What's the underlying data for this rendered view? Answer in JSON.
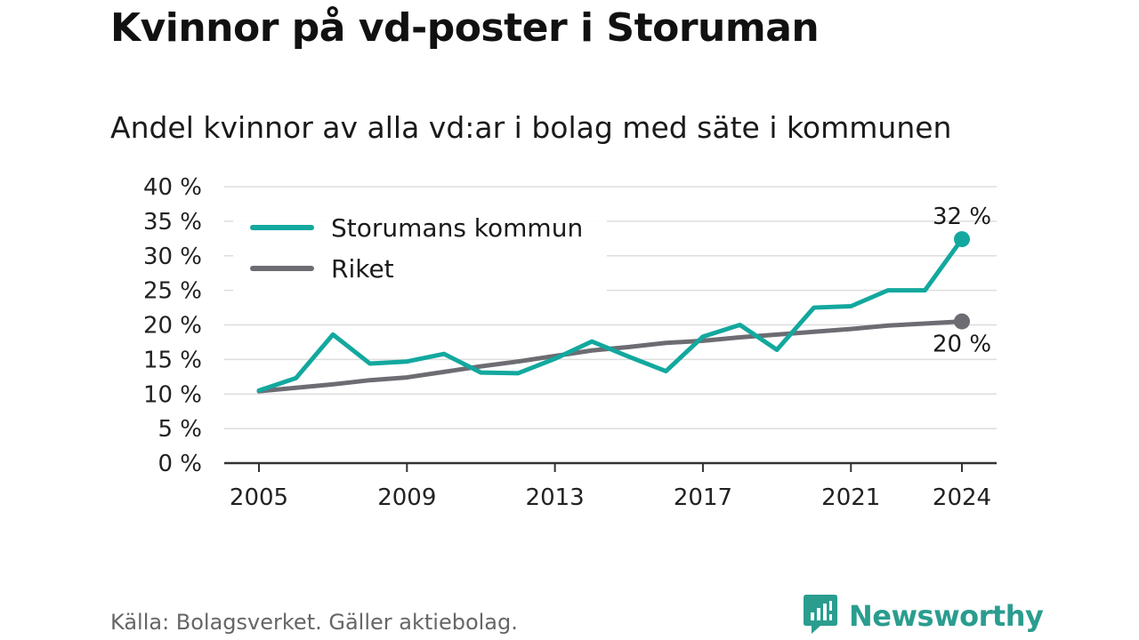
{
  "header": {
    "title": "Kvinnor på vd-poster i Storuman",
    "subtitle": "Andel kvinnor av alla vd:ar i bolag med säte i kommunen"
  },
  "footer": {
    "source": "Källa: Bolagsverket. Gäller aktiebolag.",
    "brand": "Newsworthy",
    "brand_icon": "newsworthy-logo-icon"
  },
  "colors": {
    "storuman": "#13a89e",
    "riket": "#6d6c72",
    "grid": "#dddddd",
    "axis": "#333333",
    "brand": "#2a9d8f"
  },
  "chart_data": {
    "type": "line",
    "x": [
      2005,
      2006,
      2007,
      2008,
      2009,
      2010,
      2011,
      2012,
      2013,
      2014,
      2015,
      2016,
      2017,
      2018,
      2019,
      2020,
      2021,
      2022,
      2023,
      2024
    ],
    "series": [
      {
        "name": "Storumans kommun",
        "color": "#13a89e",
        "values": [
          10.5,
          12.3,
          18.6,
          14.4,
          14.7,
          15.8,
          13.1,
          13.0,
          15.1,
          17.6,
          15.4,
          13.3,
          18.3,
          20.0,
          16.4,
          22.5,
          22.7,
          25.0,
          25.0,
          32.4
        ],
        "end_label": "32 %"
      },
      {
        "name": "Riket",
        "color": "#6d6c72",
        "values": [
          10.4,
          10.9,
          11.4,
          12.0,
          12.4,
          13.2,
          14.0,
          14.7,
          15.5,
          16.3,
          16.8,
          17.4,
          17.7,
          18.2,
          18.6,
          19.0,
          19.4,
          19.9,
          20.2,
          20.5
        ],
        "end_label": "20 %"
      }
    ],
    "ylim": [
      0,
      40
    ],
    "yticks": [
      0,
      5,
      10,
      15,
      20,
      25,
      30,
      35,
      40
    ],
    "ytick_labels": [
      "0 %",
      "5 %",
      "10 %",
      "15 %",
      "20 %",
      "25 %",
      "30 %",
      "35 %",
      "40 %"
    ],
    "xticks": [
      2005,
      2009,
      2013,
      2017,
      2021,
      2024
    ],
    "xtick_labels": [
      "2005",
      "2009",
      "2013",
      "2017",
      "2021",
      "2024"
    ],
    "grid": true,
    "legend_position": "top-left"
  }
}
